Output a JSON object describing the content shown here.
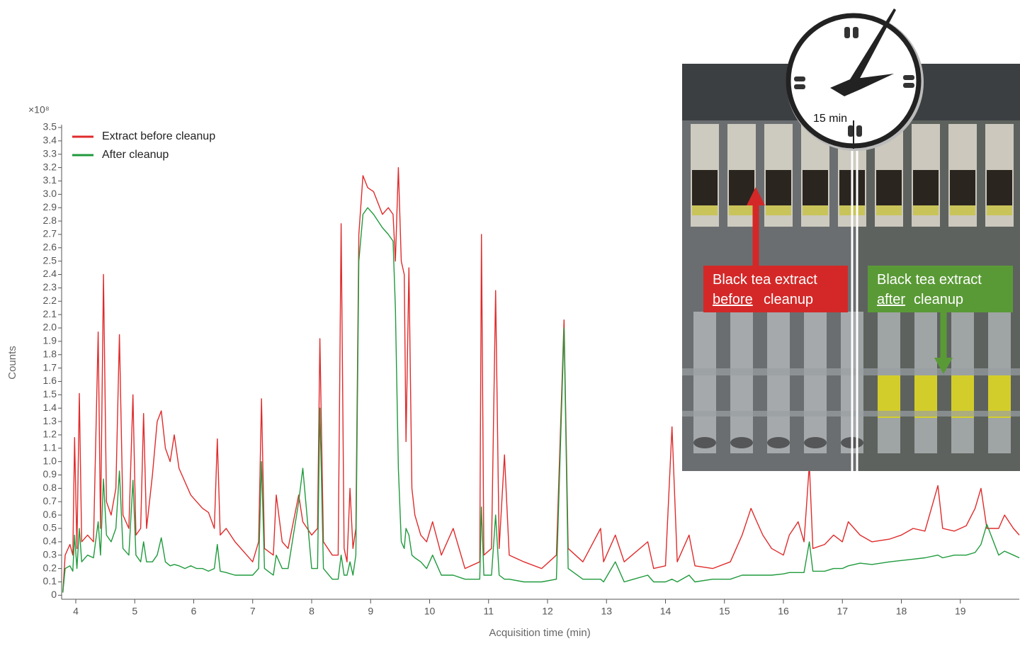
{
  "chart_data": {
    "type": "line",
    "y_scale_label": "×10⁸",
    "y_label": "Counts",
    "x_label": "Acquisition time (min)",
    "xlim": [
      3.76,
      20
    ],
    "ylim": [
      -0.03,
      3.5
    ],
    "xticks": [
      4,
      5,
      6,
      7,
      8,
      9,
      10,
      11,
      12,
      13,
      14,
      15,
      16,
      17,
      18,
      19
    ],
    "yticks": [
      0,
      0.1,
      0.2,
      0.3,
      0.4,
      0.5,
      0.6,
      0.7,
      0.8,
      0.9,
      {
        "value": 1,
        "label": "1.0"
      },
      1.1,
      1.2,
      1.3,
      1.4,
      1.5,
      1.6,
      1.7,
      1.8,
      1.9,
      {
        "value": 2,
        "label": "2.0"
      },
      2.1,
      2.2,
      2.3,
      2.4,
      2.5,
      2.6,
      2.7,
      2.8,
      2.9,
      {
        "value": 3,
        "label": "3.0"
      },
      3.1,
      3.2,
      3.3,
      3.4,
      3.5
    ],
    "grid": false,
    "legend": "top-left",
    "x": [
      3.78,
      3.82,
      3.9,
      3.95,
      3.98,
      4.02,
      4.06,
      4.1,
      4.2,
      4.3,
      4.38,
      4.42,
      4.47,
      4.52,
      4.6,
      4.68,
      4.74,
      4.8,
      4.9,
      4.97,
      5.02,
      5.1,
      5.15,
      5.2,
      5.3,
      5.38,
      5.45,
      5.52,
      5.6,
      5.67,
      5.75,
      5.85,
      5.95,
      6.05,
      6.15,
      6.25,
      6.35,
      6.4,
      6.45,
      6.55,
      6.7,
      6.9,
      7.0,
      7.1,
      7.15,
      7.2,
      7.35,
      7.4,
      7.5,
      7.6,
      7.78,
      7.85,
      8.0,
      8.1,
      8.14,
      8.2,
      8.35,
      8.45,
      8.5,
      8.55,
      8.6,
      8.65,
      8.7,
      8.75,
      8.8,
      8.87,
      8.95,
      9.05,
      9.2,
      9.3,
      9.38,
      9.42,
      9.47,
      9.52,
      9.57,
      9.6,
      9.65,
      9.7,
      9.75,
      9.85,
      9.95,
      10.05,
      10.2,
      10.4,
      10.6,
      10.85,
      10.88,
      10.92,
      11.05,
      11.12,
      11.18,
      11.27,
      11.35,
      11.6,
      11.9,
      12.15,
      12.28,
      12.35,
      12.6,
      12.9,
      12.95,
      13.15,
      13.3,
      13.7,
      13.8,
      14.0,
      14.11,
      14.2,
      14.4,
      14.5,
      14.8,
      15.1,
      15.3,
      15.45,
      15.55,
      15.65,
      15.8,
      16.0,
      16.1,
      16.25,
      16.35,
      16.44,
      16.5,
      16.7,
      16.85,
      17.0,
      17.1,
      17.3,
      17.5,
      17.8,
      18.0,
      18.2,
      18.4,
      18.62,
      18.7,
      18.9,
      19.1,
      19.25,
      19.35,
      19.45,
      19.65,
      19.75,
      19.9,
      20.0
    ],
    "series": [
      {
        "name": "Extract before cleanup",
        "color": "#e02b2b",
        "values": [
          0.02,
          0.3,
          0.38,
          0.3,
          1.18,
          0.35,
          1.51,
          0.4,
          0.45,
          0.4,
          1.97,
          0.5,
          2.4,
          0.7,
          0.6,
          0.8,
          1.95,
          0.6,
          0.5,
          1.5,
          0.45,
          0.5,
          1.36,
          0.5,
          0.9,
          1.3,
          1.38,
          1.1,
          1.0,
          1.2,
          0.95,
          0.85,
          0.75,
          0.7,
          0.65,
          0.62,
          0.5,
          1.17,
          0.45,
          0.5,
          0.4,
          0.3,
          0.25,
          0.4,
          1.47,
          0.35,
          0.3,
          0.75,
          0.4,
          0.35,
          0.75,
          0.55,
          0.45,
          0.5,
          1.92,
          0.4,
          0.3,
          0.3,
          2.78,
          0.35,
          0.25,
          0.8,
          0.35,
          0.5,
          2.7,
          3.14,
          3.05,
          3.02,
          2.85,
          2.9,
          2.85,
          2.5,
          3.2,
          2.5,
          2.4,
          1.15,
          2.45,
          0.8,
          0.6,
          0.45,
          0.4,
          0.55,
          0.3,
          0.5,
          0.2,
          0.25,
          2.7,
          0.3,
          0.35,
          2.28,
          0.35,
          1.05,
          0.3,
          0.25,
          0.2,
          0.3,
          2.06,
          0.35,
          0.25,
          0.5,
          0.25,
          0.45,
          0.25,
          0.4,
          0.2,
          0.22,
          1.26,
          0.25,
          0.45,
          0.22,
          0.2,
          0.25,
          0.45,
          0.65,
          0.55,
          0.45,
          0.35,
          0.3,
          0.45,
          0.55,
          0.4,
          0.98,
          0.35,
          0.38,
          0.45,
          0.4,
          0.55,
          0.45,
          0.4,
          0.42,
          0.45,
          0.5,
          0.48,
          0.82,
          0.5,
          0.48,
          0.52,
          0.65,
          0.8,
          0.5,
          0.5,
          0.6,
          0.5,
          0.45
        ]
      },
      {
        "name": "After cleanup",
        "color": "#1f9a3c",
        "values": [
          0.02,
          0.2,
          0.22,
          0.18,
          0.45,
          0.2,
          0.5,
          0.25,
          0.3,
          0.28,
          0.55,
          0.3,
          0.87,
          0.45,
          0.4,
          0.5,
          0.93,
          0.35,
          0.3,
          0.86,
          0.3,
          0.25,
          0.4,
          0.25,
          0.25,
          0.3,
          0.43,
          0.25,
          0.22,
          0.23,
          0.22,
          0.2,
          0.22,
          0.2,
          0.2,
          0.18,
          0.2,
          0.38,
          0.18,
          0.17,
          0.15,
          0.15,
          0.15,
          0.2,
          1.0,
          0.2,
          0.15,
          0.3,
          0.2,
          0.2,
          0.7,
          0.95,
          0.2,
          0.2,
          1.4,
          0.2,
          0.12,
          0.12,
          0.3,
          0.15,
          0.15,
          0.25,
          0.15,
          0.3,
          2.5,
          2.85,
          2.9,
          2.85,
          2.75,
          2.7,
          2.65,
          2.15,
          0.95,
          0.4,
          0.35,
          0.5,
          0.45,
          0.3,
          0.28,
          0.25,
          0.2,
          0.3,
          0.15,
          0.15,
          0.12,
          0.12,
          0.66,
          0.15,
          0.15,
          0.6,
          0.15,
          0.12,
          0.12,
          0.1,
          0.1,
          0.12,
          2.0,
          0.2,
          0.12,
          0.12,
          0.1,
          0.25,
          0.1,
          0.15,
          0.1,
          0.1,
          0.12,
          0.1,
          0.15,
          0.1,
          0.12,
          0.12,
          0.15,
          0.15,
          0.15,
          0.15,
          0.15,
          0.16,
          0.17,
          0.17,
          0.17,
          0.4,
          0.18,
          0.18,
          0.2,
          0.2,
          0.22,
          0.24,
          0.23,
          0.25,
          0.26,
          0.27,
          0.28,
          0.3,
          0.28,
          0.3,
          0.3,
          0.32,
          0.38,
          0.53,
          0.3,
          0.33,
          0.3,
          0.28
        ]
      }
    ]
  },
  "inset": {
    "clock_label": "15 min",
    "before": {
      "line1": "Black tea extract",
      "emphasis": "before",
      "line2": "cleanup"
    },
    "after": {
      "line1": "Black tea extract",
      "emphasis": "after",
      "line2": "cleanup"
    }
  }
}
